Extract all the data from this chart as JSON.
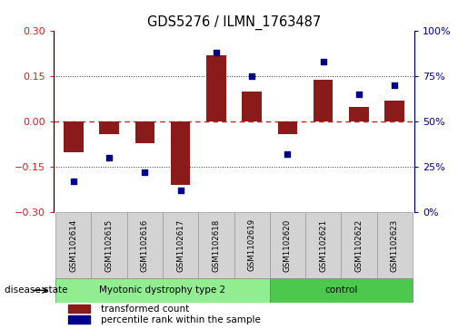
{
  "title": "GDS5276 / ILMN_1763487",
  "categories": [
    "GSM1102614",
    "GSM1102615",
    "GSM1102616",
    "GSM1102617",
    "GSM1102618",
    "GSM1102619",
    "GSM1102620",
    "GSM1102621",
    "GSM1102622",
    "GSM1102623"
  ],
  "bar_values": [
    -0.1,
    -0.04,
    -0.07,
    -0.21,
    0.22,
    0.1,
    -0.04,
    0.14,
    0.05,
    0.07
  ],
  "dot_values": [
    17,
    30,
    22,
    12,
    88,
    75,
    32,
    83,
    65,
    70
  ],
  "ylim_left": [
    -0.3,
    0.3
  ],
  "ylim_right": [
    0,
    100
  ],
  "yticks_left": [
    -0.3,
    -0.15,
    0.0,
    0.15,
    0.3
  ],
  "yticks_right": [
    0,
    25,
    50,
    75,
    100
  ],
  "bar_color": "#8B1A1A",
  "dot_color": "#00008B",
  "hline_zero_color": "#CC2222",
  "hline_015_color": "#333333",
  "group1_label": "Myotonic dystrophy type 2",
  "group2_label": "control",
  "group1_count": 6,
  "group2_count": 4,
  "group1_color": "#90EE90",
  "group2_color": "#4CC94C",
  "disease_state_label": "disease state",
  "legend_bar_label": "transformed count",
  "legend_dot_label": "percentile rank within the sample",
  "tick_label_box_color": "#D3D3D3",
  "tick_label_box_edge": "#999999"
}
